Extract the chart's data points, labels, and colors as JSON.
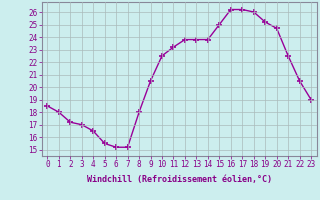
{
  "x": [
    0,
    1,
    2,
    3,
    4,
    5,
    6,
    7,
    8,
    9,
    10,
    11,
    12,
    13,
    14,
    15,
    16,
    17,
    18,
    19,
    20,
    21,
    22,
    23
  ],
  "y": [
    18.5,
    18.0,
    17.2,
    17.0,
    16.5,
    15.5,
    15.2,
    15.2,
    18.0,
    20.5,
    22.5,
    23.2,
    23.8,
    23.8,
    23.8,
    25.0,
    26.2,
    26.2,
    26.0,
    25.2,
    24.7,
    22.5,
    20.5,
    19.0
  ],
  "line_color": "#990099",
  "marker": "+",
  "markersize": 4,
  "markeredgewidth": 1.2,
  "linewidth": 1.0,
  "bg_color": "#cceeee",
  "grid_color": "#aabbbb",
  "border_color": "#888899",
  "xlabel": "Windchill (Refroidissement éolien,°C)",
  "xlabel_color": "#880088",
  "tick_color": "#880088",
  "label_fontsize": 5.5,
  "xlabel_fontsize": 6.0,
  "ylim": [
    14.5,
    26.8
  ],
  "xlim": [
    -0.5,
    23.5
  ],
  "yticks": [
    15,
    16,
    17,
    18,
    19,
    20,
    21,
    22,
    23,
    24,
    25,
    26
  ],
  "xticks": [
    0,
    1,
    2,
    3,
    4,
    5,
    6,
    7,
    8,
    9,
    10,
    11,
    12,
    13,
    14,
    15,
    16,
    17,
    18,
    19,
    20,
    21,
    22,
    23
  ]
}
